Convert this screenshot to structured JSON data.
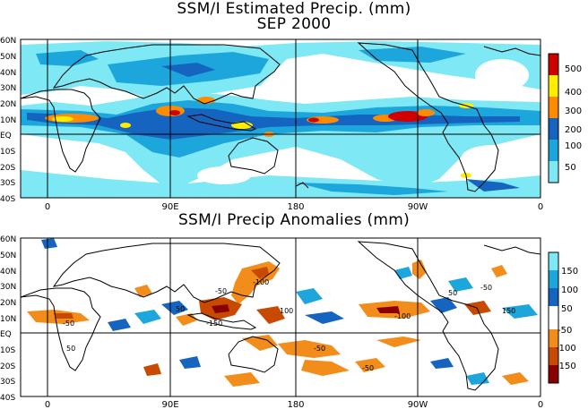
{
  "top_panel": {
    "title_line1": "SSM/I Estimated Precip. (mm)",
    "title_line2": "SEP 2000",
    "lat_labels": [
      "60N",
      "50N",
      "40N",
      "30N",
      "20N",
      "10N",
      "EQ",
      "10S",
      "20S",
      "30S",
      "40S"
    ],
    "lon_labels": [
      "0",
      "90E",
      "180",
      "90W",
      "0"
    ],
    "legend": {
      "labels": [
        "500",
        "400",
        "300",
        "200",
        "100",
        "50"
      ],
      "colors": [
        "#ffffff",
        "#7ee8f4",
        "#1da6dc",
        "#1565c0",
        "#ff8c00",
        "#ffee00",
        "#d00000"
      ]
    }
  },
  "bottom_panel": {
    "title": "SSM/I Precip Anomalies (mm)",
    "lat_labels": [
      "60N",
      "50N",
      "40N",
      "30N",
      "20N",
      "10N",
      "EQ",
      "10S",
      "20S",
      "30S",
      "40S"
    ],
    "lon_labels": [
      "0",
      "90E",
      "180",
      "90W",
      "0"
    ],
    "legend": {
      "labels": [
        "150",
        "100",
        "50",
        "-50",
        "-100",
        "-150"
      ],
      "colors": [
        "#7ee8f4",
        "#1da6dc",
        "#1565c0",
        "#ffffff",
        "#f28c1a",
        "#c84a00",
        "#8a0000"
      ]
    },
    "contour_labels": [
      "-50",
      "-100",
      "50",
      "100",
      "-150",
      "150"
    ]
  }
}
